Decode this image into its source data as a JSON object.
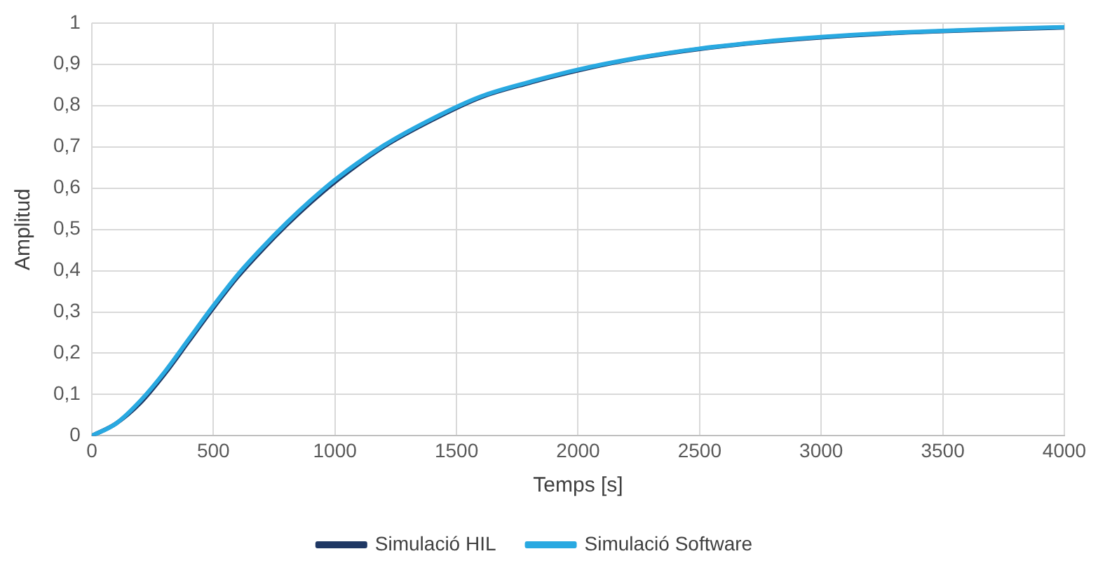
{
  "chart_data": {
    "type": "line",
    "xlabel": "Temps [s]",
    "ylabel": "Amplitud",
    "x": [
      0,
      100,
      200,
      300,
      400,
      500,
      600,
      700,
      800,
      900,
      1000,
      1200,
      1400,
      1600,
      1800,
      2000,
      2250,
      2500,
      2750,
      3000,
      3250,
      3500,
      3750,
      4000
    ],
    "series": [
      {
        "name": "Simulació HIL",
        "color": "#1f3864",
        "values": [
          0,
          0.03,
          0.08,
          0.15,
          0.23,
          0.31,
          0.385,
          0.45,
          0.51,
          0.565,
          0.615,
          0.7,
          0.765,
          0.82,
          0.855,
          0.885,
          0.915,
          0.937,
          0.953,
          0.965,
          0.974,
          0.98,
          0.985,
          0.989
        ]
      },
      {
        "name": "Simulació Software",
        "color": "#29a9e1",
        "values": [
          0,
          0.03,
          0.085,
          0.155,
          0.235,
          0.315,
          0.39,
          0.455,
          0.515,
          0.57,
          0.62,
          0.703,
          0.768,
          0.822,
          0.857,
          0.887,
          0.916,
          0.938,
          0.954,
          0.966,
          0.975,
          0.981,
          0.986,
          0.99
        ]
      }
    ],
    "xlim": [
      0,
      4000
    ],
    "xticks": [
      0,
      500,
      1000,
      1500,
      2000,
      2500,
      3000,
      3500,
      4000
    ],
    "ylim": [
      0,
      1
    ],
    "yticks": [
      0,
      {
        "value": 0.1,
        "label": "0,1"
      },
      {
        "value": 0.2,
        "label": "0,2"
      },
      {
        "value": 0.3,
        "label": "0,3"
      },
      {
        "value": 0.4,
        "label": "0,4"
      },
      {
        "value": 0.5,
        "label": "0,5"
      },
      {
        "value": 0.6,
        "label": "0,6"
      },
      {
        "value": 0.7,
        "label": "0,7"
      },
      {
        "value": 0.8,
        "label": "0,8"
      },
      {
        "value": 0.9,
        "label": "0,9"
      },
      1
    ],
    "grid": true,
    "legend": "bottom",
    "marker": "none",
    "line_style": "solid"
  }
}
